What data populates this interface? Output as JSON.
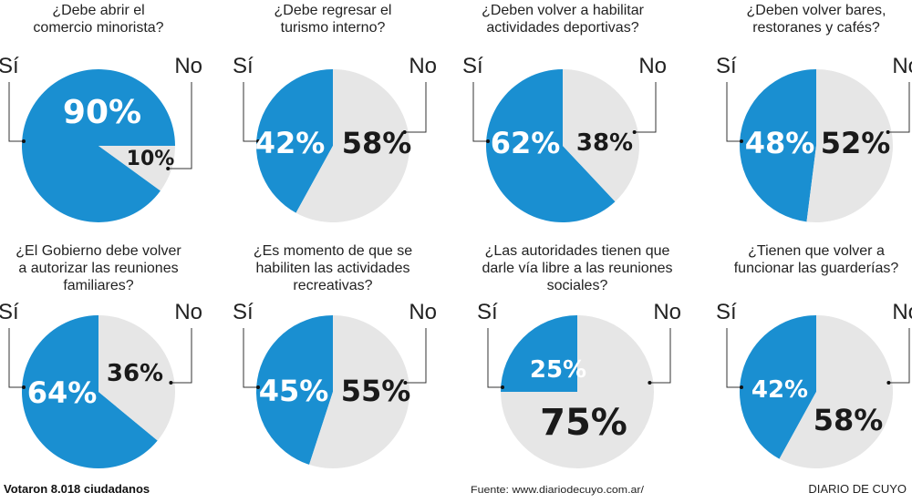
{
  "colors": {
    "si": "#1a8fd1",
    "no": "#e6e6e6",
    "si_text": "#ffffff",
    "no_text": "#1a1a1a"
  },
  "chart_data": [
    {
      "type": "pie",
      "title": [
        "¿Debe abrir el",
        "comercio minorista?"
      ],
      "labels": [
        "Sí",
        "No"
      ],
      "values": [
        90,
        10
      ],
      "value_labels": [
        "90%",
        "10%"
      ]
    },
    {
      "type": "pie",
      "title": [
        "¿Debe regresar el",
        "turismo interno?"
      ],
      "labels": [
        "Sí",
        "No"
      ],
      "values": [
        42,
        58
      ],
      "value_labels": [
        "42%",
        "58%"
      ]
    },
    {
      "type": "pie",
      "title": [
        "¿Deben volver a habilitar",
        "actividades deportivas?"
      ],
      "labels": [
        "Sí",
        "No"
      ],
      "values": [
        62,
        38
      ],
      "value_labels": [
        "62%",
        "38%"
      ]
    },
    {
      "type": "pie",
      "title": [
        "¿Deben volver bares,",
        "restoranes y cafés?"
      ],
      "labels": [
        "Sí",
        "No"
      ],
      "values": [
        48,
        52
      ],
      "value_labels": [
        "48%",
        "52%"
      ]
    },
    {
      "type": "pie",
      "title": [
        "¿El Gobierno debe volver",
        "a autorizar las reuniones",
        "familiares?"
      ],
      "labels": [
        "Sí",
        "No"
      ],
      "values": [
        64,
        36
      ],
      "value_labels": [
        "64%",
        "36%"
      ]
    },
    {
      "type": "pie",
      "title": [
        "¿Es momento de que se",
        "habiliten las actividades",
        "recreativas?"
      ],
      "labels": [
        "Sí",
        "No"
      ],
      "values": [
        45,
        55
      ],
      "value_labels": [
        "45%",
        "55%"
      ]
    },
    {
      "type": "pie",
      "title": [
        "¿Las autoridades tienen que",
        "darle vía libre a las reuniones",
        "sociales?"
      ],
      "labels": [
        "Sí",
        "No"
      ],
      "values": [
        25,
        75
      ],
      "value_labels": [
        "25%",
        "75%"
      ]
    },
    {
      "type": "pie",
      "title": [
        "¿Tienen que volver a",
        "funcionar las guarderías?"
      ],
      "labels": [
        "Sí",
        "No"
      ],
      "values": [
        42,
        58
      ],
      "value_labels": [
        "42%",
        "58%"
      ]
    }
  ],
  "footer": {
    "votes": "Votaron 8.018 ciudadanos",
    "source": "Fuente: www.diariodecuyo.com.ar/",
    "brand": "DIARIO DE CUYO"
  }
}
